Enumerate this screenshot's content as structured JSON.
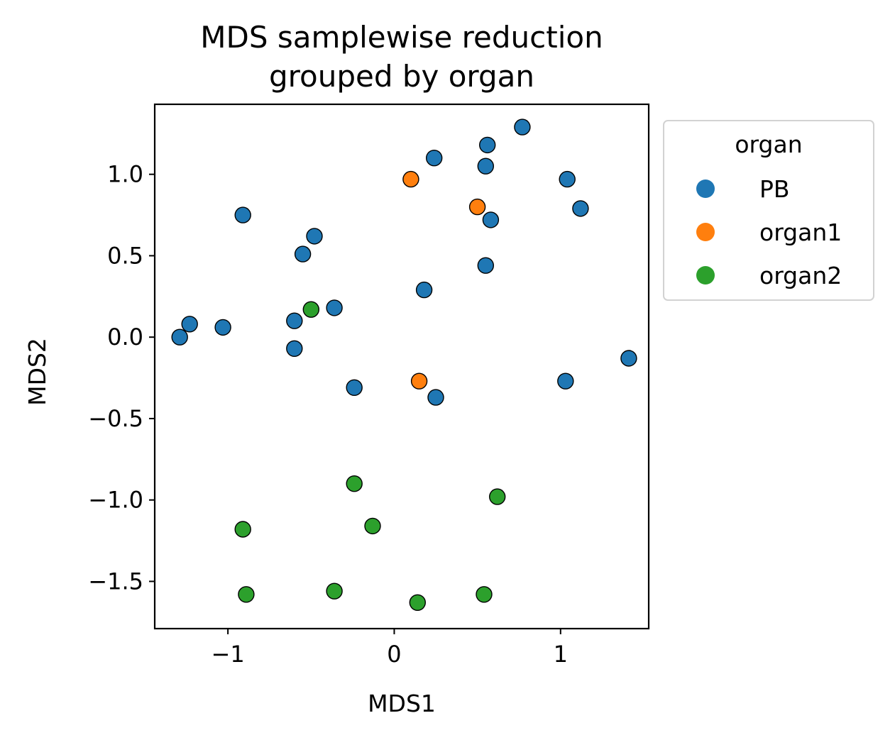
{
  "chart_data": {
    "type": "scatter",
    "title_lines": [
      "MDS samplewise reduction",
      "grouped by organ"
    ],
    "xlabel": "MDS1",
    "ylabel": "MDS2",
    "xlim": [
      -1.44,
      1.53
    ],
    "ylim": [
      -1.79,
      1.43
    ],
    "xticks": [
      -1,
      0,
      1
    ],
    "xtick_labels": [
      "−1",
      "0",
      "1"
    ],
    "yticks": [
      -1.5,
      -1.0,
      -0.5,
      0.0,
      0.5,
      1.0
    ],
    "ytick_labels": [
      "−1.5",
      "−1.0",
      "−0.5",
      "0.0",
      "0.5",
      "1.0"
    ],
    "grid": false,
    "legend": {
      "title": "organ",
      "placement": "outside-right-top"
    },
    "series": [
      {
        "name": "PB",
        "color": "#1f77b4",
        "points": [
          [
            0.77,
            1.29
          ],
          [
            0.56,
            1.18
          ],
          [
            0.24,
            1.1
          ],
          [
            0.55,
            1.05
          ],
          [
            1.04,
            0.97
          ],
          [
            1.12,
            0.79
          ],
          [
            0.58,
            0.72
          ],
          [
            -0.91,
            0.75
          ],
          [
            -0.48,
            0.62
          ],
          [
            -0.55,
            0.51
          ],
          [
            0.55,
            0.44
          ],
          [
            0.18,
            0.29
          ],
          [
            -0.36,
            0.18
          ],
          [
            -0.6,
            0.1
          ],
          [
            -1.03,
            0.06
          ],
          [
            -1.23,
            0.08
          ],
          [
            -1.29,
            0.0
          ],
          [
            -0.6,
            -0.07
          ],
          [
            1.41,
            -0.13
          ],
          [
            -0.24,
            -0.31
          ],
          [
            0.25,
            -0.37
          ],
          [
            1.03,
            -0.27
          ]
        ]
      },
      {
        "name": "organ1",
        "color": "#ff7f0e",
        "points": [
          [
            0.1,
            0.97
          ],
          [
            0.5,
            0.8
          ],
          [
            0.15,
            -0.27
          ]
        ]
      },
      {
        "name": "organ2",
        "color": "#2ca02c",
        "points": [
          [
            -0.5,
            0.17
          ],
          [
            -0.24,
            -0.9
          ],
          [
            0.62,
            -0.98
          ],
          [
            -0.91,
            -1.18
          ],
          [
            -0.13,
            -1.16
          ],
          [
            -0.89,
            -1.58
          ],
          [
            -0.36,
            -1.56
          ],
          [
            0.14,
            -1.63
          ],
          [
            0.54,
            -1.58
          ]
        ]
      }
    ]
  }
}
